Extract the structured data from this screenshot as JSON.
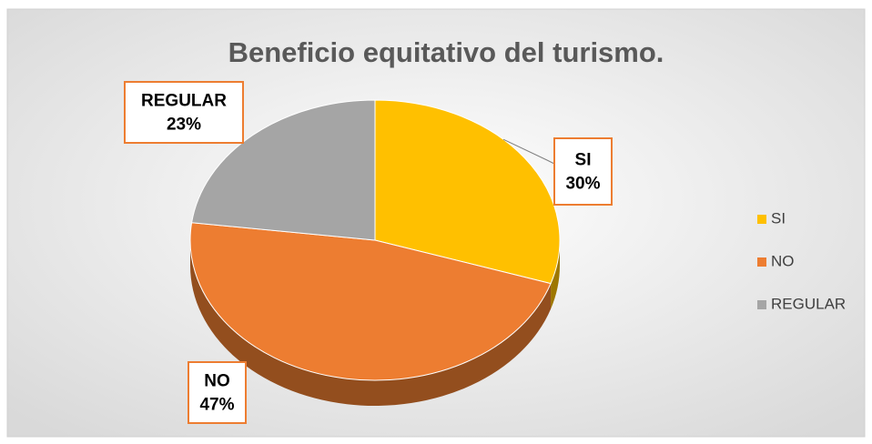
{
  "chart_data": {
    "type": "pie",
    "title": "Beneficio equitativo del turismo.",
    "categories": [
      "SI",
      "NO",
      "REGULAR"
    ],
    "values": [
      30,
      47,
      23
    ],
    "value_labels": [
      "30%",
      "47%",
      "23%"
    ],
    "colors": [
      "#FFC000",
      "#ED7D31",
      "#A5A5A5"
    ],
    "legend": "right"
  }
}
